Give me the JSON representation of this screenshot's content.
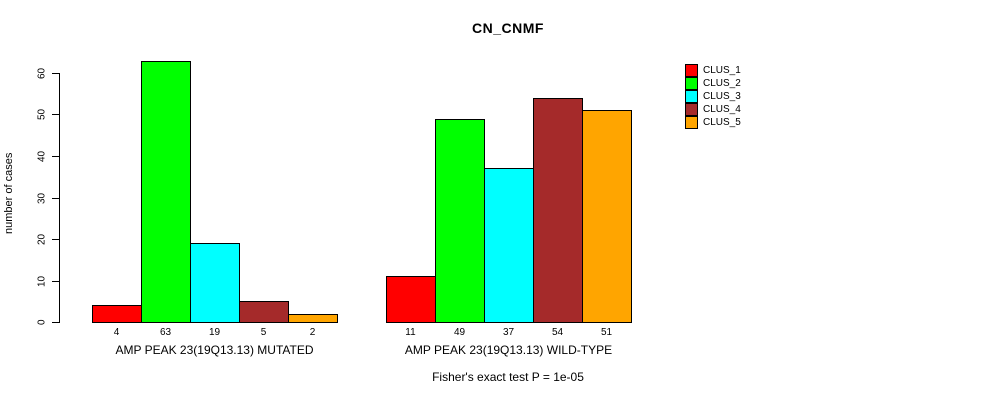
{
  "chart_data": {
    "type": "bar",
    "title": "CN_CNMF",
    "ylabel": "number of cases",
    "xlabel": "",
    "ylim": [
      0,
      60
    ],
    "yticks": [
      0,
      10,
      20,
      30,
      40,
      50,
      60
    ],
    "grid": false,
    "legend_position": "top-right",
    "categories": [
      "AMP PEAK 23(19Q13.13) MUTATED",
      "AMP PEAK 23(19Q13.13) WILD-TYPE"
    ],
    "series": [
      {
        "name": "CLUS_1",
        "color": "#ff0000",
        "values": [
          4,
          11
        ]
      },
      {
        "name": "CLUS_2",
        "color": "#00ff00",
        "values": [
          63,
          49
        ]
      },
      {
        "name": "CLUS_3",
        "color": "#00ffff",
        "values": [
          19,
          37
        ]
      },
      {
        "name": "CLUS_4",
        "color": "#a52a2a",
        "values": [
          5,
          54
        ]
      },
      {
        "name": "CLUS_5",
        "color": "#ffa500",
        "values": [
          2,
          51
        ]
      }
    ],
    "bar_value_labels": true,
    "annotation": "Fisher's exact test P = 1e-05"
  }
}
